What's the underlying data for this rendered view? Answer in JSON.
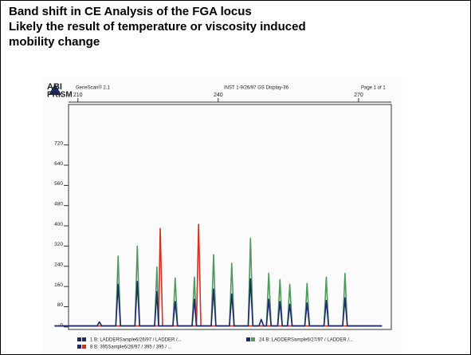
{
  "slide": {
    "title_lines": [
      "Band shift in CE Analysis of the FGA locus",
      "Likely the result of temperature or viscosity induced",
      "mobility change"
    ]
  },
  "chart_data": {
    "type": "line",
    "header": {
      "logo_top": "ABI",
      "logo_bottom": "PRISM",
      "software": "GeneScan® 2.1",
      "instrument": "INST 1-9/26/97 GS Display-36",
      "page": "Page 1 of 1"
    },
    "x": [
      205,
      214.1,
      214.6,
      215.1,
      218.1,
      218.6,
      219.1,
      222.2,
      222.7,
      223.2,
      226.4,
      226.9,
      227.25,
      227.6,
      228.1,
      230.3,
      230.8,
      231.3,
      234.4,
      234.9,
      235.35,
      235.8,
      236.3,
      238.5,
      239.0,
      239.5,
      242.4,
      242.9,
      243.4,
      246.4,
      246.9,
      247.4,
      248.7,
      249.2,
      249.7,
      250.3,
      250.8,
      251.3,
      252.7,
      253.2,
      253.7,
      254.8,
      255.3,
      255.8,
      258.5,
      259.0,
      259.5,
      262.6,
      263.1,
      263.6,
      266.6,
      267.1,
      267.6,
      275
    ],
    "series": [
      {
        "name": "24 B: LADDERSample6/27/97 / LADDER /...",
        "color": "#4e9a5c",
        "values": [
          4,
          4,
          4,
          4,
          4,
          280,
          4,
          4,
          320,
          4,
          4,
          237,
          4,
          4,
          4,
          4,
          194,
          4,
          4,
          197,
          4,
          4,
          4,
          4,
          286,
          4,
          4,
          252,
          4,
          4,
          351,
          4,
          4,
          4,
          4,
          4,
          212,
          4,
          4,
          188,
          4,
          4,
          169,
          4,
          4,
          172,
          4,
          4,
          197,
          4,
          4,
          212,
          4,
          4
        ]
      },
      {
        "name": "8 B: 395Sample6/26/97 / 395 / 395 / ...",
        "color": "#d4311f",
        "values": [
          4,
          4,
          4,
          4,
          4,
          4,
          4,
          4,
          4,
          4,
          4,
          4,
          4,
          390,
          4,
          4,
          4,
          4,
          4,
          4,
          4,
          406,
          4,
          4,
          4,
          4,
          4,
          4,
          4,
          4,
          4,
          4,
          4,
          4,
          4,
          4,
          4,
          4,
          4,
          4,
          4,
          4,
          4,
          4,
          4,
          4,
          4,
          4,
          4,
          4,
          4,
          4,
          4,
          4
        ]
      },
      {
        "name": "1 B: LADDERSample6/26/97 / LADDER /...",
        "color": "#1c2a6c",
        "values": [
          4,
          4,
          20,
          4,
          4,
          169,
          4,
          4,
          180,
          4,
          4,
          140,
          4,
          4,
          4,
          4,
          100,
          4,
          4,
          110,
          4,
          4,
          4,
          4,
          150,
          4,
          4,
          130,
          4,
          4,
          190,
          4,
          4,
          30,
          4,
          4,
          110,
          4,
          4,
          100,
          4,
          4,
          90,
          4,
          4,
          95,
          4,
          4,
          105,
          4,
          4,
          115,
          4,
          4
        ]
      }
    ],
    "xlim": [
      208,
      277
    ],
    "xticks": [
      210,
      240,
      270
    ],
    "ylim": [
      -10,
      880
    ],
    "yticks": [
      0,
      80,
      160,
      240,
      320,
      400,
      480,
      560,
      640,
      720
    ]
  }
}
